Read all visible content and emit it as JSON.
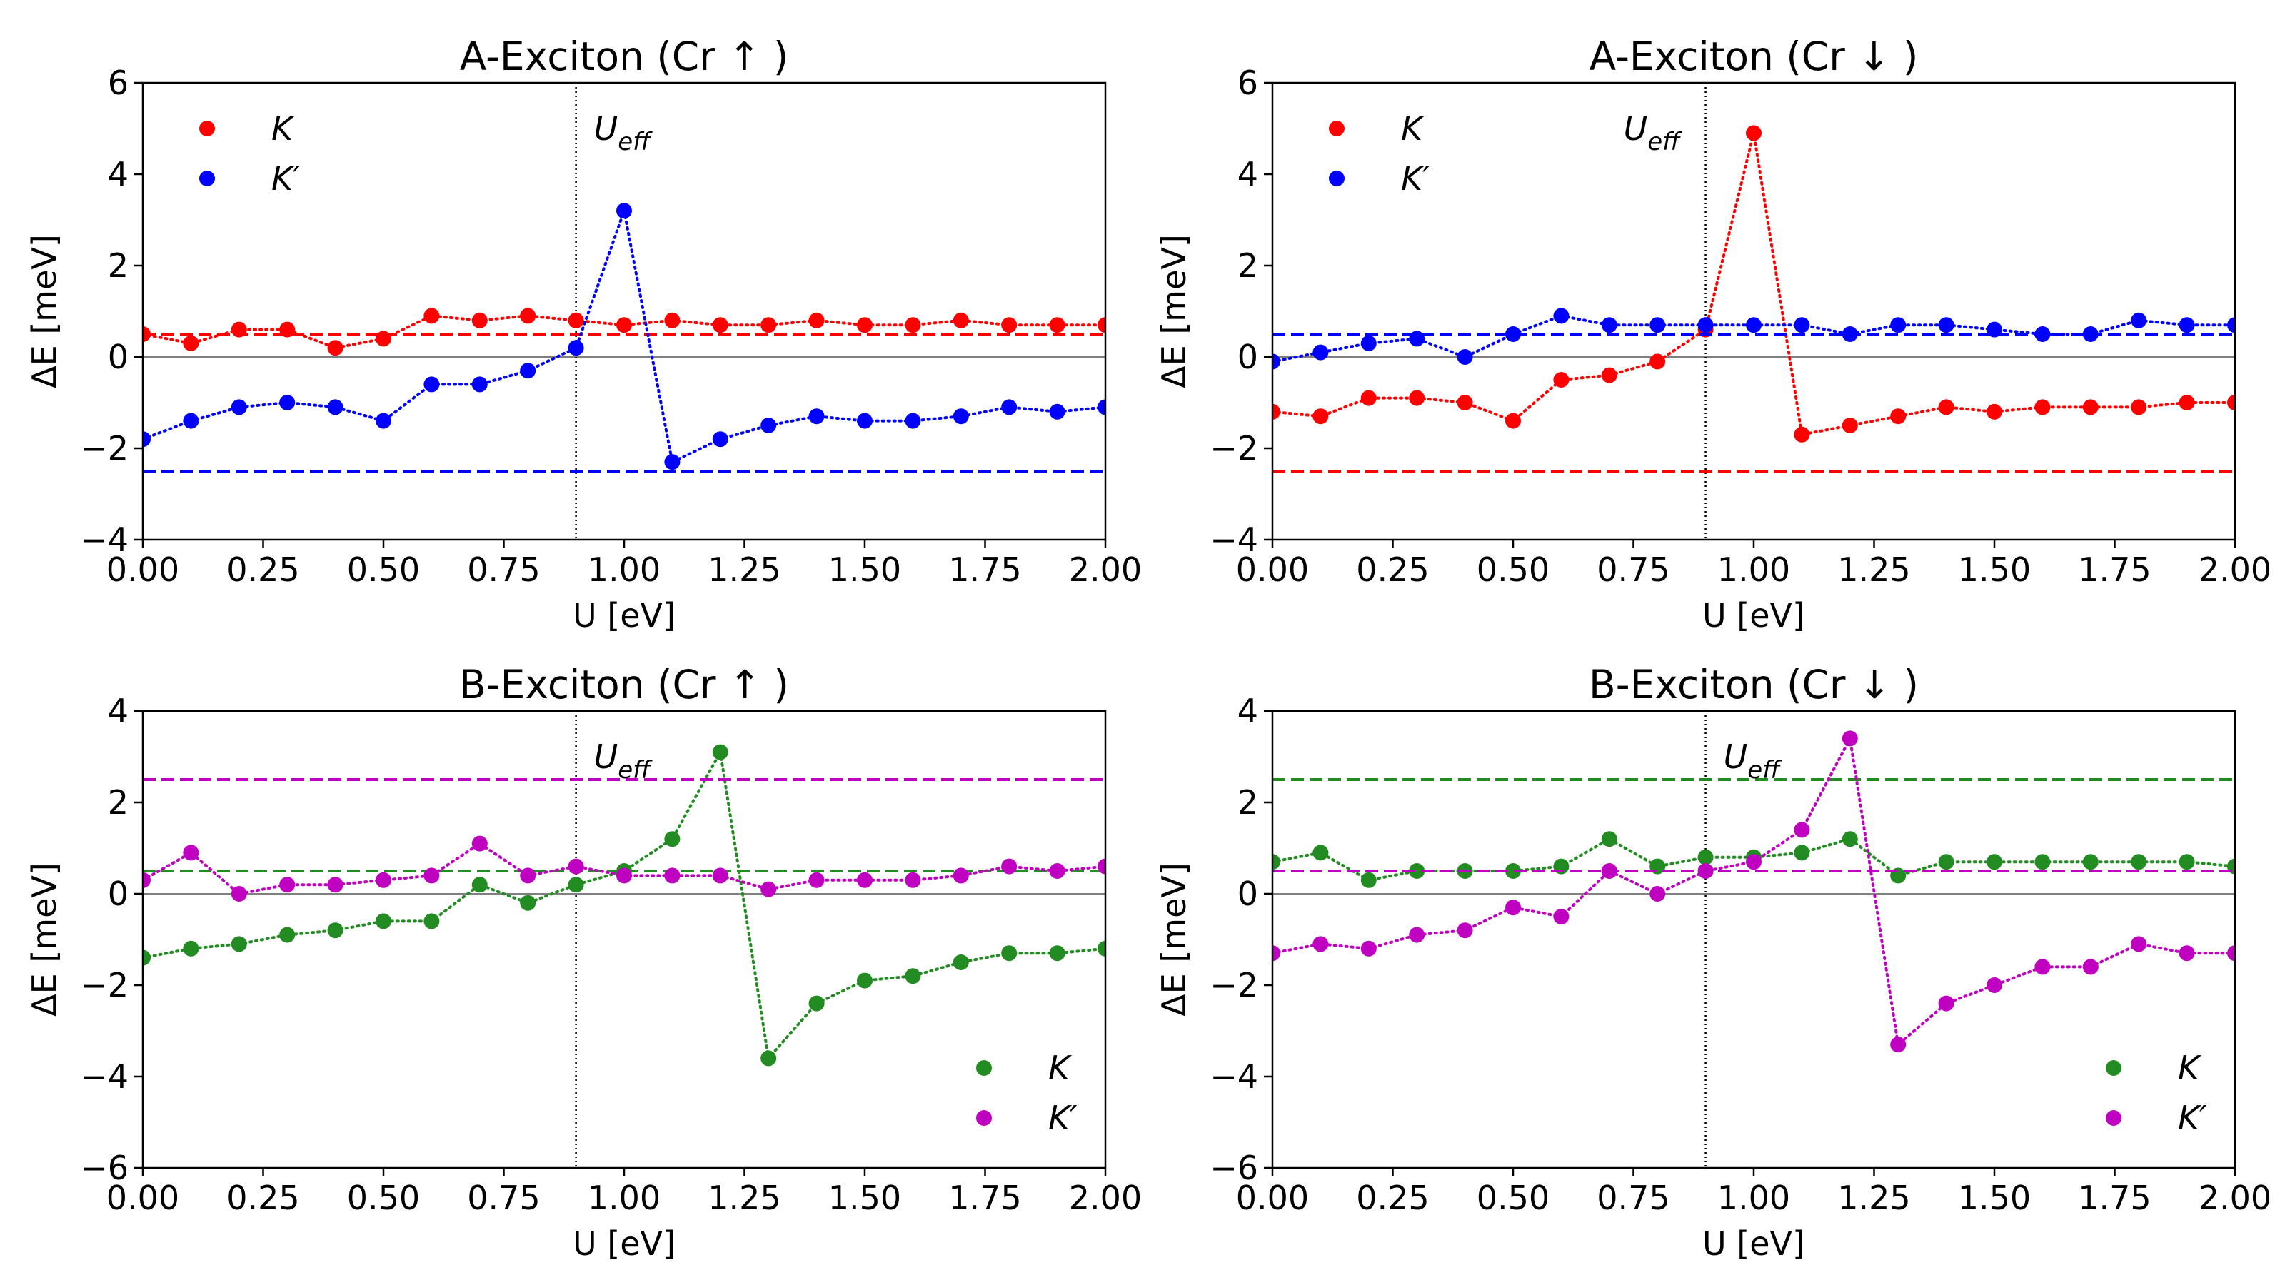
{
  "chart_data": [
    {
      "type": "scatter",
      "title": "A-Exciton (Cr ↑ )",
      "xlabel": "U [eV]",
      "ylabel": "ΔE [meV]",
      "xlim": [
        0,
        2
      ],
      "ylim": [
        -4,
        6
      ],
      "xticks": [
        "0.00",
        "0.25",
        "0.50",
        "0.75",
        "1.00",
        "1.25",
        "1.50",
        "1.75",
        "2.00"
      ],
      "yticks": [
        "−4",
        "−2",
        "0",
        "2",
        "4",
        "6"
      ],
      "ytick_values": [
        -4,
        -2,
        0,
        2,
        4,
        6
      ],
      "vline_x": 0.9,
      "vline_label": "U_eff",
      "legend_position": "top-left",
      "x": [
        0.0,
        0.1,
        0.2,
        0.3,
        0.4,
        0.5,
        0.6,
        0.7,
        0.8,
        0.9,
        1.0,
        1.1,
        1.2,
        1.3,
        1.4,
        1.5,
        1.6,
        1.7,
        1.8,
        1.9,
        2.0
      ],
      "series": [
        {
          "name": "K",
          "color": "#ff0000",
          "hline": 0.5,
          "values": [
            0.5,
            0.3,
            0.6,
            0.6,
            0.2,
            0.4,
            0.9,
            0.8,
            0.9,
            0.8,
            0.7,
            0.8,
            0.7,
            0.7,
            0.8,
            0.7,
            0.7,
            0.8,
            0.7,
            0.7,
            0.7
          ]
        },
        {
          "name": "K′",
          "color": "#0000ff",
          "hline": -2.5,
          "values": [
            -1.8,
            -1.4,
            -1.1,
            -1.0,
            -1.1,
            -1.4,
            -0.6,
            -0.6,
            -0.3,
            0.2,
            3.2,
            -2.3,
            -1.8,
            -1.5,
            -1.3,
            -1.4,
            -1.4,
            -1.3,
            -1.1,
            -1.2,
            -1.1
          ]
        }
      ]
    },
    {
      "type": "scatter",
      "title": "A-Exciton (Cr ↓ )",
      "xlabel": "U [eV]",
      "ylabel": "ΔE [meV]",
      "xlim": [
        0,
        2
      ],
      "ylim": [
        -4,
        6
      ],
      "xticks": [
        "0.00",
        "0.25",
        "0.50",
        "0.75",
        "1.00",
        "1.25",
        "1.50",
        "1.75",
        "2.00"
      ],
      "yticks": [
        "−4",
        "−2",
        "0",
        "2",
        "4",
        "6"
      ],
      "ytick_values": [
        -4,
        -2,
        0,
        2,
        4,
        6
      ],
      "vline_x": 0.9,
      "vline_label": "U_eff",
      "legend_position": "top-left",
      "x": [
        0.0,
        0.1,
        0.2,
        0.3,
        0.4,
        0.5,
        0.6,
        0.7,
        0.8,
        0.9,
        1.0,
        1.1,
        1.2,
        1.3,
        1.4,
        1.5,
        1.6,
        1.7,
        1.8,
        1.9,
        2.0
      ],
      "series": [
        {
          "name": "K",
          "color": "#ff0000",
          "hline": -2.5,
          "values": [
            -1.2,
            -1.3,
            -0.9,
            -0.9,
            -1.0,
            -1.4,
            -0.5,
            -0.4,
            -0.1,
            0.6,
            4.9,
            -1.7,
            -1.5,
            -1.3,
            -1.1,
            -1.2,
            -1.1,
            -1.1,
            -1.1,
            -1.0,
            -1.0
          ]
        },
        {
          "name": "K′",
          "color": "#0000ff",
          "hline": 0.5,
          "values": [
            -0.1,
            0.1,
            0.3,
            0.4,
            0.0,
            0.5,
            0.9,
            0.7,
            0.7,
            0.7,
            0.7,
            0.7,
            0.5,
            0.7,
            0.7,
            0.6,
            0.5,
            0.5,
            0.8,
            0.7,
            0.7
          ]
        }
      ]
    },
    {
      "type": "scatter",
      "title": "B-Exciton (Cr ↑ )",
      "xlabel": "U [eV]",
      "ylabel": "ΔE [meV]",
      "xlim": [
        0,
        2
      ],
      "ylim": [
        -6,
        4
      ],
      "xticks": [
        "0.00",
        "0.25",
        "0.50",
        "0.75",
        "1.00",
        "1.25",
        "1.50",
        "1.75",
        "2.00"
      ],
      "yticks": [
        "−6",
        "−4",
        "−2",
        "0",
        "2",
        "4"
      ],
      "ytick_values": [
        -6,
        -4,
        -2,
        0,
        2,
        4
      ],
      "vline_x": 0.9,
      "vline_label": "U_eff",
      "legend_position": "bottom-right",
      "x": [
        0.0,
        0.1,
        0.2,
        0.3,
        0.4,
        0.5,
        0.6,
        0.7,
        0.8,
        0.9,
        1.0,
        1.1,
        1.2,
        1.3,
        1.4,
        1.5,
        1.6,
        1.7,
        1.8,
        1.9,
        2.0
      ],
      "series": [
        {
          "name": "K",
          "color": "#228b22",
          "hline": 0.5,
          "values": [
            -1.4,
            -1.2,
            -1.1,
            -0.9,
            -0.8,
            -0.6,
            -0.6,
            0.2,
            -0.2,
            0.2,
            0.5,
            1.2,
            3.1,
            -3.6,
            -2.4,
            -1.9,
            -1.8,
            -1.5,
            -1.3,
            -1.3,
            -1.2
          ]
        },
        {
          "name": "K′",
          "color": "#c000c0",
          "hline": 2.5,
          "values": [
            0.3,
            0.9,
            0.0,
            0.2,
            0.2,
            0.3,
            0.4,
            1.1,
            0.4,
            0.6,
            0.4,
            0.4,
            0.4,
            0.1,
            0.3,
            0.3,
            0.3,
            0.4,
            0.6,
            0.5,
            0.6
          ]
        }
      ]
    },
    {
      "type": "scatter",
      "title": "B-Exciton (Cr ↓ )",
      "xlabel": "U [eV]",
      "ylabel": "ΔE [meV]",
      "xlim": [
        0,
        2
      ],
      "ylim": [
        -6,
        4
      ],
      "xticks": [
        "0.00",
        "0.25",
        "0.50",
        "0.75",
        "1.00",
        "1.25",
        "1.50",
        "1.75",
        "2.00"
      ],
      "yticks": [
        "−6",
        "−4",
        "−2",
        "0",
        "2",
        "4"
      ],
      "ytick_values": [
        -6,
        -4,
        -2,
        0,
        2,
        4
      ],
      "vline_x": 0.9,
      "vline_label": "U_eff",
      "legend_position": "bottom-right",
      "x": [
        0.0,
        0.1,
        0.2,
        0.3,
        0.4,
        0.5,
        0.6,
        0.7,
        0.8,
        0.9,
        1.0,
        1.1,
        1.2,
        1.3,
        1.4,
        1.5,
        1.6,
        1.7,
        1.8,
        1.9,
        2.0
      ],
      "series": [
        {
          "name": "K",
          "color": "#228b22",
          "hline": 2.5,
          "values": [
            0.7,
            0.9,
            0.3,
            0.5,
            0.5,
            0.5,
            0.6,
            1.2,
            0.6,
            0.8,
            0.8,
            0.9,
            1.2,
            0.4,
            0.7,
            0.7,
            0.7,
            0.7,
            0.7,
            0.7,
            0.6
          ]
        },
        {
          "name": "K′",
          "color": "#c000c0",
          "hline": 0.5,
          "values": [
            -1.3,
            -1.1,
            -1.2,
            -0.9,
            -0.8,
            -0.3,
            -0.5,
            0.5,
            0.0,
            0.5,
            0.7,
            1.4,
            3.4,
            -3.3,
            -2.4,
            -2.0,
            -1.6,
            -1.6,
            -1.1,
            -1.3,
            -1.3
          ]
        }
      ]
    }
  ]
}
